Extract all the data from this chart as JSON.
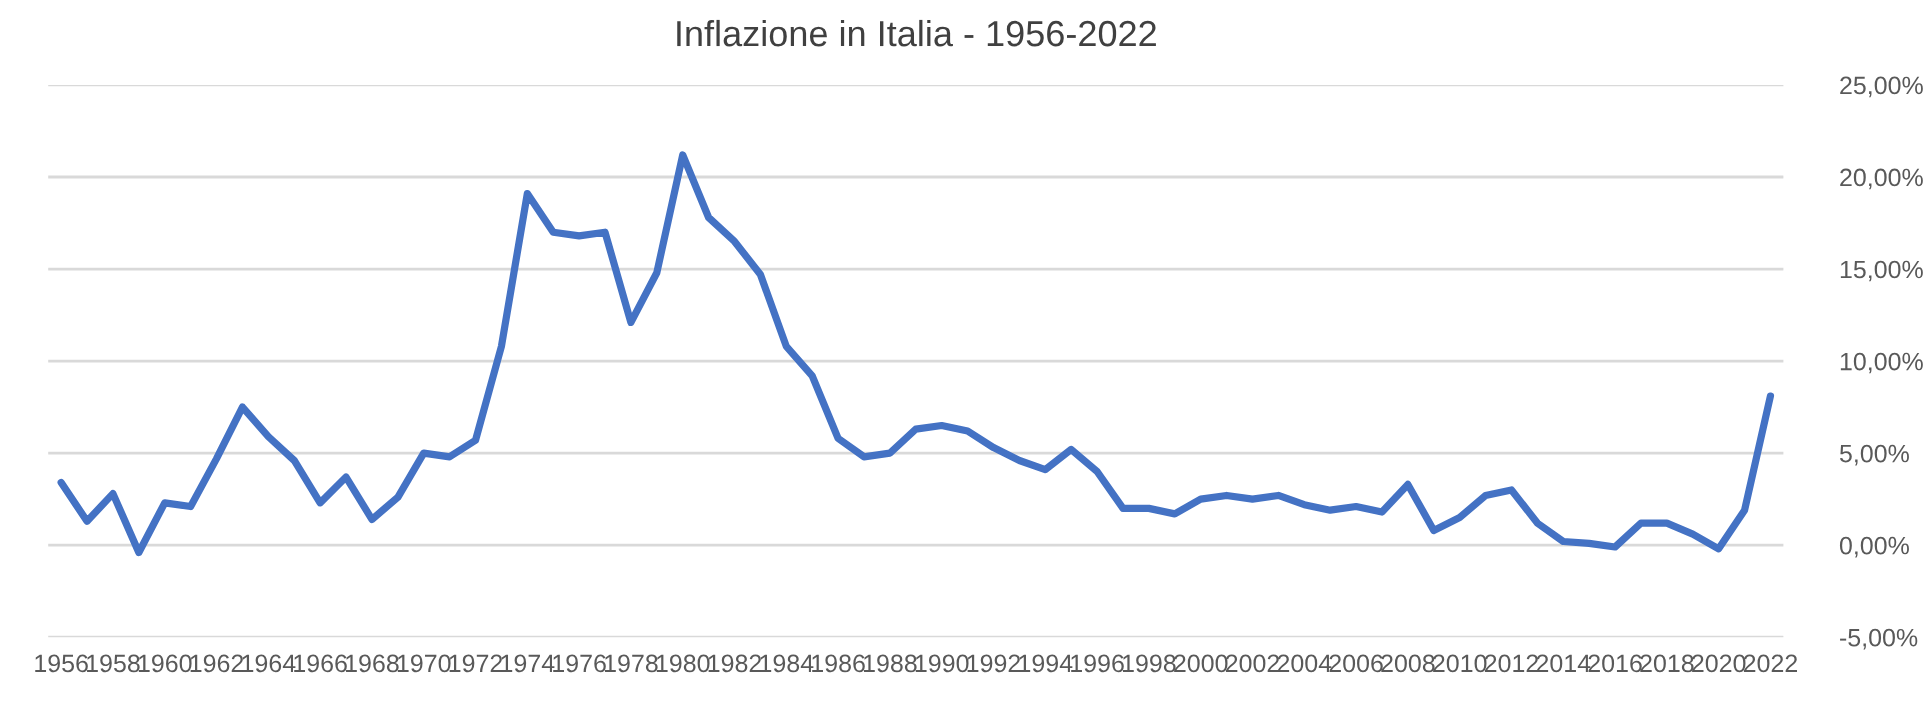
{
  "chart_data": {
    "type": "line",
    "title": "Inflazione in Italia - 1956-2022",
    "categories": [
      "1956",
      null,
      "1958",
      null,
      "1960",
      null,
      "1962",
      null,
      "1964",
      null,
      "1966",
      null,
      "1968",
      null,
      "1970",
      null,
      "1972",
      null,
      "1974",
      null,
      "1976",
      null,
      "1978",
      null,
      "1980",
      null,
      "1982",
      null,
      "1984",
      null,
      "1986",
      null,
      "1988",
      null,
      "1990",
      null,
      "1992",
      null,
      "1994",
      null,
      "1996",
      null,
      "1998",
      null,
      "2000",
      null,
      "2002",
      null,
      "2004",
      null,
      "2006",
      null,
      "2008",
      null,
      "2010",
      null,
      "2012",
      null,
      "2014",
      null,
      "2016",
      null,
      "2018",
      null,
      "2020",
      null,
      "2022"
    ],
    "series": [
      {
        "color": "#4472c4",
        "values": [
          3.4,
          1.3,
          2.8,
          -0.4,
          2.3,
          2.1,
          4.7,
          7.5,
          5.9,
          4.6,
          2.3,
          3.7,
          1.4,
          2.6,
          5.0,
          4.8,
          5.7,
          10.8,
          19.1,
          17.0,
          16.8,
          17.0,
          12.1,
          14.8,
          21.2,
          17.8,
          16.5,
          14.7,
          10.8,
          9.2,
          5.8,
          4.8,
          5.0,
          6.3,
          6.5,
          6.2,
          5.3,
          4.6,
          4.1,
          5.2,
          4.0,
          2.0,
          2.0,
          1.7,
          2.5,
          2.7,
          2.5,
          2.7,
          2.2,
          1.9,
          2.1,
          1.8,
          3.3,
          0.8,
          1.5,
          2.7,
          3.0,
          1.2,
          0.2,
          0.1,
          -0.1,
          1.2,
          1.2,
          0.6,
          -0.2,
          1.9,
          8.1
        ]
      }
    ],
    "ylim": [
      -5,
      25
    ],
    "yticks": [
      {
        "value": -5,
        "label": "-5,00%"
      },
      {
        "value": 0,
        "label": "0,00%"
      },
      {
        "value": 5,
        "label": "5,00%"
      },
      {
        "value": 10,
        "label": "10,00%"
      },
      {
        "value": 15,
        "label": "15,00%"
      },
      {
        "value": 20,
        "label": "20,00%"
      },
      {
        "value": 25,
        "label": "25,00%"
      }
    ],
    "grid": "y",
    "marker": "none",
    "line_style": "solid"
  }
}
